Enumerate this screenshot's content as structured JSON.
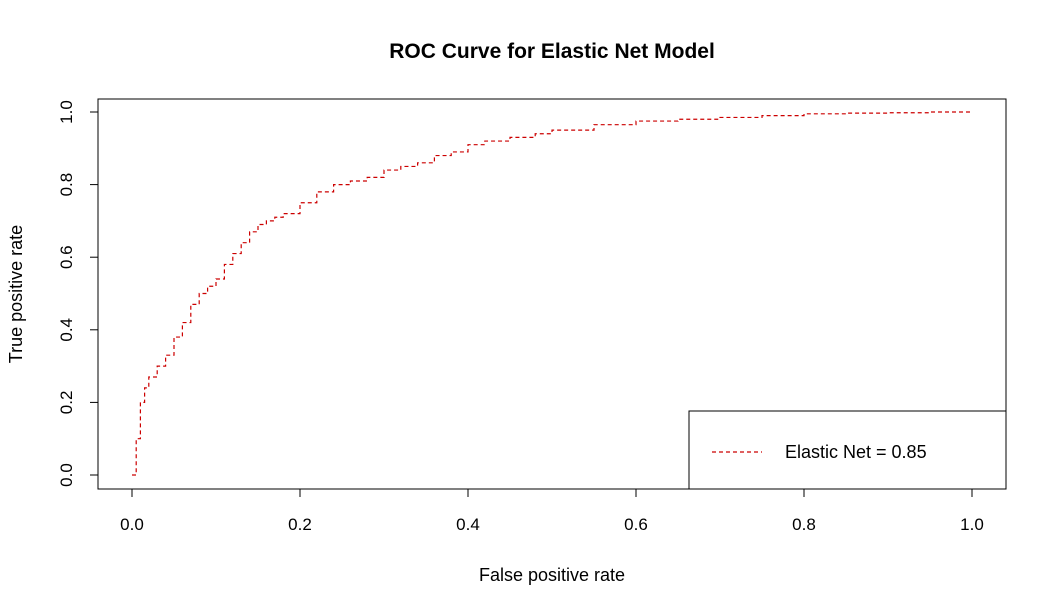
{
  "chart_data": {
    "type": "line",
    "title": "ROC Curve for Elastic Net Model",
    "xlabel": "False positive rate",
    "ylabel": "True positive rate",
    "xlim": [
      0,
      1
    ],
    "ylim": [
      0,
      1
    ],
    "x_ticks": [
      "0.0",
      "0.2",
      "0.4",
      "0.6",
      "0.8",
      "1.0"
    ],
    "y_ticks": [
      "0.0",
      "0.2",
      "0.4",
      "0.6",
      "0.8",
      "1.0"
    ],
    "grid": false,
    "legend_position": "bottom-right",
    "line_color": "#cc0000",
    "line_style": "dashed",
    "legend": [
      {
        "label": "Elastic Net = 0.85",
        "color": "#cc0000"
      }
    ],
    "series": [
      {
        "x": [
          0.0,
          0.005,
          0.01,
          0.015,
          0.02,
          0.03,
          0.04,
          0.05,
          0.06,
          0.07,
          0.08,
          0.09,
          0.1,
          0.11,
          0.12,
          0.13,
          0.14,
          0.15,
          0.16,
          0.17,
          0.18,
          0.2,
          0.22,
          0.24,
          0.26,
          0.28,
          0.3,
          0.32,
          0.34,
          0.36,
          0.38,
          0.4,
          0.42,
          0.45,
          0.48,
          0.5,
          0.55,
          0.6,
          0.65,
          0.7,
          0.75,
          0.8,
          0.85,
          0.9,
          0.95,
          1.0
        ],
        "y": [
          0.0,
          0.1,
          0.2,
          0.24,
          0.27,
          0.3,
          0.33,
          0.38,
          0.42,
          0.47,
          0.5,
          0.52,
          0.54,
          0.58,
          0.61,
          0.64,
          0.67,
          0.69,
          0.7,
          0.71,
          0.72,
          0.75,
          0.78,
          0.8,
          0.81,
          0.82,
          0.84,
          0.85,
          0.86,
          0.88,
          0.89,
          0.91,
          0.92,
          0.93,
          0.94,
          0.95,
          0.965,
          0.975,
          0.98,
          0.985,
          0.99,
          0.995,
          0.997,
          0.998,
          1.0,
          1.0
        ]
      }
    ]
  }
}
